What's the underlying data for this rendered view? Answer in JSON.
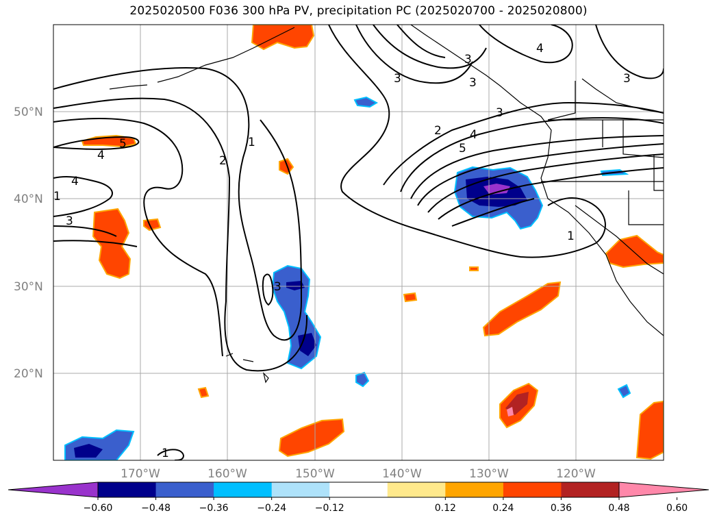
{
  "title": "2025020500 F036 300 hPa PV, precipitation PC (2025020700 - 2025020800)",
  "map": {
    "lat_labels": [
      "50°N",
      "40°N",
      "30°N",
      "20°N"
    ],
    "lon_labels": [
      "170°W",
      "160°W",
      "150°W",
      "140°W",
      "130°W",
      "120°W"
    ],
    "extent": {
      "lon_min": -180,
      "lon_max": -110,
      "lat_min": 10,
      "lat_max": 60
    },
    "gridlines": true
  },
  "pv_contour_labels": [
    "3",
    "1",
    "3",
    "4",
    "5",
    "4",
    "2",
    "1",
    "3",
    "3",
    "3",
    "2",
    "5",
    "4",
    "3",
    "3",
    "4",
    "1",
    "1"
  ],
  "colorbar": {
    "tick_labels": [
      "−0.60",
      "−0.48",
      "−0.36",
      "−0.24",
      "−0.12",
      "0.12",
      "0.24",
      "0.36",
      "0.48",
      "0.60"
    ],
    "colors": [
      "#9933cc",
      "#00008b",
      "#3a5fcd",
      "#00bfff",
      "#aee2fa",
      "#ffffff",
      "#ffe98c",
      "#ffa500",
      "#ff4500",
      "#b22222",
      "#ff88aa"
    ]
  }
}
